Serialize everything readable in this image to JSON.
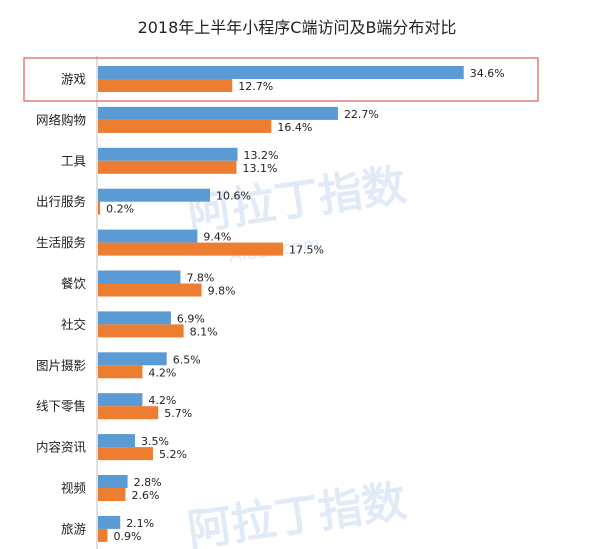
{
  "chart_data": {
    "type": "bar",
    "orientation": "horizontal",
    "title": "2018年上半年小程序C端访问及B端分布对比",
    "categories": [
      "游戏",
      "网络购物",
      "工具",
      "出行服务",
      "生活服务",
      "餐饮",
      "社交",
      "图片摄影",
      "线下零售",
      "内容资讯",
      "视频",
      "旅游"
    ],
    "series": [
      {
        "values": [
          34.6,
          22.7,
          13.2,
          10.6,
          9.4,
          7.8,
          6.9,
          6.5,
          4.2,
          3.5,
          2.8,
          2.1
        ],
        "color": "#5b9bd5"
      },
      {
        "values": [
          12.7,
          16.4,
          13.1,
          0.2,
          17.5,
          9.8,
          8.1,
          4.2,
          5.7,
          5.2,
          2.6,
          0.9
        ],
        "color": "#ed7d31"
      }
    ],
    "value_labels": [
      [
        "34.6%",
        "22.7%",
        "13.2%",
        "10.6%",
        "9.4%",
        "7.8%",
        "6.9%",
        "6.5%",
        "4.2%",
        "3.5%",
        "2.8%",
        "2.1%"
      ],
      [
        "12.7%",
        "16.4%",
        "13.1%",
        "0.2%",
        "17.5%",
        "9.8%",
        "8.1%",
        "4.2%",
        "5.7%",
        "5.2%",
        "2.6%",
        "0.9%"
      ]
    ],
    "xlim": [
      0,
      35
    ],
    "grid": false,
    "highlighted_category": "游戏",
    "highlight_color": "#e06666"
  },
  "watermark": {
    "text": "阿拉丁指数",
    "subtext": "Aldzs.com"
  }
}
